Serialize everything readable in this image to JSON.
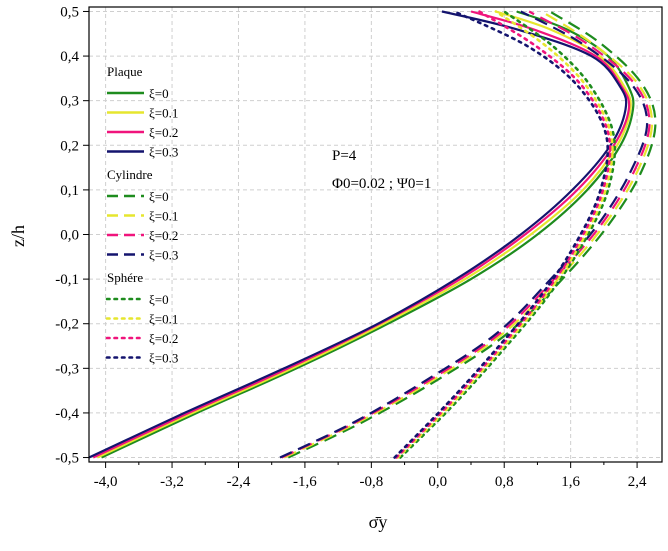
{
  "chart_data": {
    "type": "line",
    "xlabel": "σ̄y",
    "ylabel": "z/h",
    "xlim": [
      -4.2,
      2.7
    ],
    "ylim": [
      -0.51,
      0.51
    ],
    "xticks": [
      "-4,0",
      "-3,2",
      "-2,4",
      "-1,6",
      "-0,8",
      "0,0",
      "0,8",
      "1,6",
      "2,4"
    ],
    "xtick_values": [
      -4.0,
      -3.2,
      -2.4,
      -1.6,
      -0.8,
      0.0,
      0.8,
      1.6,
      2.4
    ],
    "yticks": [
      "-0,5",
      "-0,4",
      "-0,3",
      "-0,2",
      "-0,1",
      "0,0",
      "0,1",
      "0,2",
      "0,3",
      "0,4",
      "0,5"
    ],
    "ytick_values": [
      -0.5,
      -0.4,
      -0.3,
      -0.2,
      -0.1,
      0.0,
      0.1,
      0.2,
      0.3,
      0.4,
      0.5
    ],
    "annotations": {
      "line1": "P=4",
      "line2": "Φ0=0.02 ; Ψ0=1"
    },
    "legend": {
      "groups": [
        {
          "title": "Plaque",
          "style": "solid"
        },
        {
          "title": "Cylindre",
          "style": "dashed"
        },
        {
          "title": "Sphére",
          "style": "dotted"
        }
      ],
      "entries": [
        "ξ=0",
        "ξ=0.1",
        "ξ=0.2",
        "ξ=0.3"
      ],
      "colors": [
        "#1e8c1e",
        "#e6e62e",
        "#f0147c",
        "#14146e"
      ]
    },
    "series": [
      {
        "name": "Plaque ξ=0",
        "group": "Plaque",
        "style": "solid",
        "color": "#1e8c1e",
        "x": [
          -4.05,
          -2.9,
          -1.7,
          -0.6,
          0.4,
          1.2,
          1.8,
          2.2,
          2.35,
          2.3,
          2.05,
          1.55,
          0.95
        ],
        "y": [
          -0.5,
          -0.4,
          -0.3,
          -0.2,
          -0.1,
          0.0,
          0.1,
          0.2,
          0.28,
          0.33,
          0.4,
          0.46,
          0.5
        ]
      },
      {
        "name": "Plaque ξ=0.1",
        "group": "Plaque",
        "style": "solid",
        "color": "#e6e62e",
        "x": [
          -4.1,
          -2.95,
          -1.75,
          -0.65,
          0.33,
          1.12,
          1.75,
          2.16,
          2.32,
          2.25,
          1.95,
          1.35,
          0.7
        ],
        "y": [
          -0.5,
          -0.4,
          -0.3,
          -0.2,
          -0.1,
          0.0,
          0.1,
          0.2,
          0.28,
          0.33,
          0.4,
          0.46,
          0.5
        ]
      },
      {
        "name": "Plaque ξ=0.2",
        "group": "Plaque",
        "style": "solid",
        "color": "#f0147c",
        "x": [
          -4.15,
          -3.0,
          -1.8,
          -0.7,
          0.27,
          1.05,
          1.68,
          2.12,
          2.3,
          2.22,
          1.9,
          1.15,
          0.4
        ],
        "y": [
          -0.5,
          -0.4,
          -0.3,
          -0.2,
          -0.1,
          0.0,
          0.1,
          0.2,
          0.28,
          0.33,
          0.4,
          0.46,
          0.5
        ]
      },
      {
        "name": "Plaque ξ=0.3",
        "group": "Plaque",
        "style": "solid",
        "color": "#14146e",
        "x": [
          -4.2,
          -3.05,
          -1.85,
          -0.72,
          0.22,
          1.0,
          1.62,
          2.08,
          2.26,
          2.2,
          1.85,
          0.95,
          0.05
        ],
        "y": [
          -0.5,
          -0.4,
          -0.3,
          -0.2,
          -0.1,
          0.0,
          0.1,
          0.2,
          0.28,
          0.33,
          0.4,
          0.46,
          0.5
        ]
      },
      {
        "name": "Cylindre ξ=0",
        "group": "Cylindre",
        "style": "dashed",
        "color": "#1e8c1e",
        "x": [
          -1.8,
          -0.9,
          0.05,
          0.85,
          1.5,
          2.05,
          2.45,
          2.62,
          2.45,
          1.95,
          1.35
        ],
        "y": [
          -0.5,
          -0.42,
          -0.32,
          -0.22,
          -0.1,
          0.02,
          0.14,
          0.25,
          0.34,
          0.43,
          0.5
        ]
      },
      {
        "name": "Cylindre ξ=0.1",
        "group": "Cylindre",
        "style": "dashed",
        "color": "#e6e62e",
        "x": [
          -1.85,
          -0.95,
          0.0,
          0.8,
          1.45,
          2.0,
          2.4,
          2.58,
          2.4,
          1.85,
          1.25
        ],
        "y": [
          -0.5,
          -0.42,
          -0.32,
          -0.22,
          -0.1,
          0.02,
          0.14,
          0.25,
          0.34,
          0.43,
          0.5
        ]
      },
      {
        "name": "Cylindre ξ=0.2",
        "group": "Cylindre",
        "style": "dashed",
        "color": "#f0147c",
        "x": [
          -1.88,
          -0.98,
          -0.04,
          0.76,
          1.4,
          1.96,
          2.36,
          2.55,
          2.36,
          1.78,
          1.1
        ],
        "y": [
          -0.5,
          -0.42,
          -0.32,
          -0.22,
          -0.1,
          0.02,
          0.14,
          0.25,
          0.34,
          0.43,
          0.5
        ]
      },
      {
        "name": "Cylindre ξ=0.3",
        "group": "Cylindre",
        "style": "dashed",
        "color": "#14146e",
        "x": [
          -1.9,
          -1.0,
          -0.08,
          0.72,
          1.36,
          1.92,
          2.32,
          2.52,
          2.32,
          1.72,
          1.0
        ],
        "y": [
          -0.5,
          -0.42,
          -0.32,
          -0.22,
          -0.1,
          0.02,
          0.14,
          0.25,
          0.34,
          0.43,
          0.5
        ]
      },
      {
        "name": "Sphére ξ=0",
        "group": "Sphére",
        "style": "dotted",
        "color": "#1e8c1e",
        "x": [
          -0.45,
          0.2,
          0.78,
          1.32,
          1.75,
          2.05,
          2.12,
          1.85,
          1.4,
          0.8
        ],
        "y": [
          -0.5,
          -0.38,
          -0.26,
          -0.14,
          -0.02,
          0.1,
          0.22,
          0.33,
          0.42,
          0.5
        ]
      },
      {
        "name": "Sphére ξ=0.1",
        "group": "Sphére",
        "style": "dotted",
        "color": "#e6e62e",
        "x": [
          -0.48,
          0.17,
          0.75,
          1.29,
          1.72,
          2.02,
          2.09,
          1.8,
          1.32,
          0.7
        ],
        "y": [
          -0.5,
          -0.38,
          -0.26,
          -0.14,
          -0.02,
          0.1,
          0.22,
          0.33,
          0.42,
          0.5
        ]
      },
      {
        "name": "Sphére ξ=0.2",
        "group": "Sphére",
        "style": "dotted",
        "color": "#f0147c",
        "x": [
          -0.5,
          0.14,
          0.72,
          1.26,
          1.69,
          1.99,
          2.06,
          1.75,
          1.2,
          0.5
        ],
        "y": [
          -0.5,
          -0.38,
          -0.26,
          -0.14,
          -0.02,
          0.1,
          0.22,
          0.33,
          0.42,
          0.5
        ]
      },
      {
        "name": "Sphére ξ=0.3",
        "group": "Sphére",
        "style": "dotted",
        "color": "#14146e",
        "x": [
          -0.52,
          0.11,
          0.69,
          1.23,
          1.66,
          1.96,
          2.03,
          1.7,
          1.1,
          0.2
        ],
        "y": [
          -0.5,
          -0.38,
          -0.26,
          -0.14,
          -0.02,
          0.1,
          0.22,
          0.33,
          0.42,
          0.5
        ]
      }
    ]
  }
}
